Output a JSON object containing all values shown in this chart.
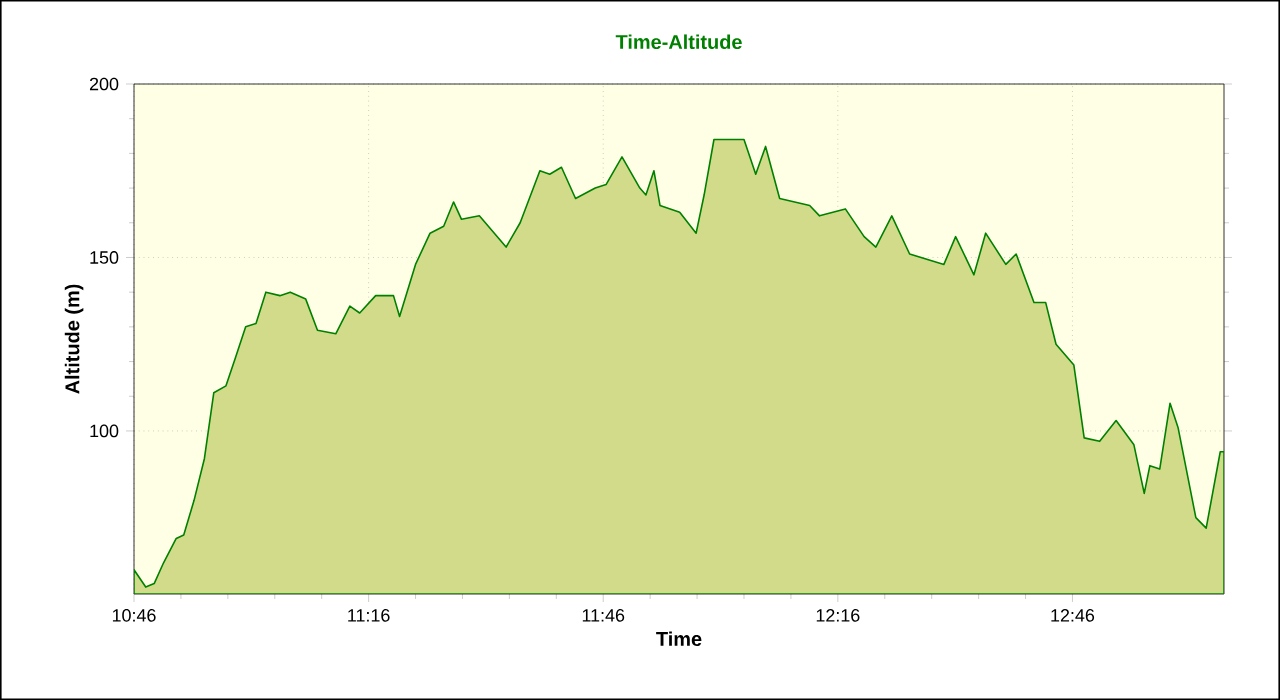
{
  "chart_data": {
    "type": "area",
    "title": "Time-Altitude",
    "xlabel": "Time",
    "ylabel": "Altitude (m)",
    "x": [
      10.767,
      10.792,
      10.81,
      10.83,
      10.857,
      10.873,
      10.895,
      10.917,
      10.937,
      10.963,
      10.983,
      11.005,
      11.027,
      11.048,
      11.078,
      11.1,
      11.133,
      11.158,
      11.197,
      11.227,
      11.248,
      11.282,
      11.32,
      11.333,
      11.367,
      11.398,
      11.427,
      11.448,
      11.465,
      11.503,
      11.56,
      11.59,
      11.632,
      11.653,
      11.678,
      11.708,
      11.75,
      11.773,
      11.807,
      11.845,
      11.858,
      11.875,
      11.888,
      11.93,
      11.965,
      11.982,
      12.003,
      12.067,
      12.092,
      12.113,
      12.143,
      12.207,
      12.228,
      12.283,
      12.323,
      12.348,
      12.382,
      12.42,
      12.493,
      12.518,
      12.557,
      12.582,
      12.625,
      12.647,
      12.685,
      12.71,
      12.732,
      12.77,
      12.792,
      12.825,
      12.86,
      12.898,
      12.92,
      12.932,
      12.953,
      12.975,
      12.992,
      13.03,
      13.052,
      13.082,
      13.09
    ],
    "series": [
      {
        "color": "#008000",
        "values": [
          60,
          55,
          56,
          62,
          69,
          70,
          80,
          92,
          111,
          113,
          121,
          130,
          131,
          140,
          139,
          140,
          138,
          129,
          128,
          136,
          134,
          139,
          139,
          133,
          148,
          157,
          159,
          166,
          161,
          162,
          153,
          160,
          175,
          174,
          176,
          167,
          170,
          171,
          179,
          170,
          168,
          175,
          165,
          163,
          157,
          168,
          184,
          184,
          174,
          182,
          167,
          165,
          162,
          164,
          156,
          153,
          162,
          151,
          148,
          156,
          145,
          157,
          148,
          151,
          137,
          137,
          125,
          119,
          98,
          97,
          103,
          96,
          82,
          90,
          89,
          108,
          101,
          75,
          72,
          94,
          94
        ]
      }
    ],
    "xlim": [
      10.767,
      13.09
    ],
    "ylim": [
      53,
      200
    ],
    "xticks": [
      {
        "value": 10.767,
        "label": "10:46"
      },
      {
        "value": 11.267,
        "label": "11:16"
      },
      {
        "value": 11.767,
        "label": "11:46"
      },
      {
        "value": 12.267,
        "label": "12:16"
      },
      {
        "value": 12.767,
        "label": "12:46"
      }
    ],
    "yticks": [
      100,
      150,
      200
    ],
    "grid": true
  }
}
